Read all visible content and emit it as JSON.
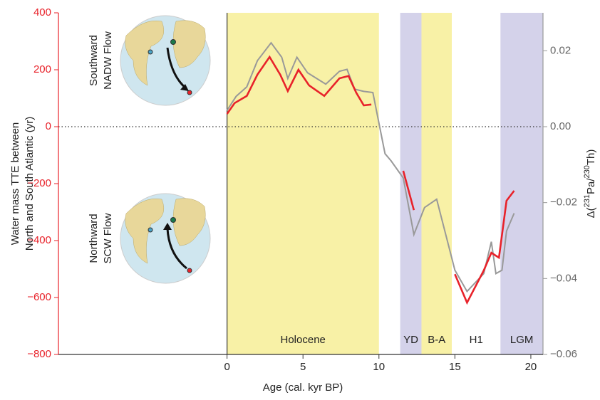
{
  "chart_data": {
    "type": "line",
    "ylabel": [
      "Water mass TTE between",
      "North and South Atlantic (yr)"
    ],
    "y2label_parts": [
      "Δ(",
      "231",
      "Pa/",
      "230",
      "Th)"
    ],
    "xlabel": "Age (cal. kyr BP)",
    "xlim": [
      -11.1,
      20.8
    ],
    "xticks": [
      0,
      5,
      10,
      15,
      20
    ],
    "ylim": [
      -800,
      400
    ],
    "yticks": [
      {
        "value": -800,
        "label": "−800"
      },
      {
        "value": -600,
        "label": "−600"
      },
      {
        "value": -400,
        "label": "−400"
      },
      {
        "value": -200,
        "label": "−200"
      },
      0,
      200,
      400
    ],
    "y2lim": [
      -0.06,
      0.03
    ],
    "y2ticks": [
      {
        "value": -0.06,
        "label": "−0.06"
      },
      {
        "value": -0.04,
        "label": "−0.04"
      },
      {
        "value": -0.02,
        "label": "−0.02"
      },
      {
        "value": 0,
        "label": "0.00"
      },
      0.02
    ],
    "regions": [
      {
        "label": "Holocene",
        "start": 0,
        "end": 10,
        "color": "#f8f1a6"
      },
      {
        "label": "YD",
        "start": 11.4,
        "end": 12.8,
        "color": "#d4d2ea"
      },
      {
        "label": "B-A",
        "start": 12.8,
        "end": 14.8,
        "color": "#f8f1a6"
      },
      {
        "label": "H1",
        "start": 14.8,
        "end": 18,
        "color": "#ffffff"
      },
      {
        "label": "LGM",
        "start": 18,
        "end": 20.8,
        "color": "#d4d2ea"
      }
    ],
    "insets": [
      [
        "Southward",
        "NADW Flow"
      ],
      [
        "Northward",
        "SCW Flow"
      ]
    ],
    "series": [
      {
        "color": "#e8222a",
        "x": [
          0,
          0.5,
          1.3,
          2,
          2.8,
          3.5,
          4,
          4.7,
          5.4,
          6.4,
          7.4,
          8,
          8.5,
          9,
          9.5,
          null,
          11.6,
          12.3,
          null,
          15,
          15.8,
          16.9,
          17.4,
          17.9,
          18.4,
          18.9
        ],
        "values": [
          45,
          83,
          108,
          183,
          245,
          183,
          125,
          200,
          145,
          108,
          170,
          178,
          120,
          75,
          78,
          null,
          -155,
          -293,
          null,
          -518,
          -618,
          -505,
          -443,
          -460,
          -260,
          -225
        ]
      },
      {
        "color": "#999999",
        "axis": "y2",
        "x": [
          0,
          0.6,
          1.3,
          2,
          2.9,
          3.6,
          4,
          4.6,
          5.3,
          6.5,
          7.4,
          7.9,
          8.4,
          9,
          9.6,
          10.4,
          10.8,
          11.6,
          12.3,
          13,
          13.8,
          15,
          15.8,
          16.9,
          17.4,
          17.7,
          18.1,
          18.4,
          18.9
        ],
        "values": [
          0.0043,
          0.008,
          0.0105,
          0.0174,
          0.0221,
          0.0183,
          0.0127,
          0.0183,
          0.0142,
          0.0112,
          0.0146,
          0.0151,
          0.0099,
          0.0093,
          0.009,
          -0.0071,
          -0.009,
          -0.0135,
          -0.0284,
          -0.0213,
          -0.0191,
          -0.0378,
          -0.0434,
          -0.0387,
          -0.0303,
          -0.0387,
          -0.0378,
          -0.0275,
          -0.0228
        ]
      }
    ]
  }
}
